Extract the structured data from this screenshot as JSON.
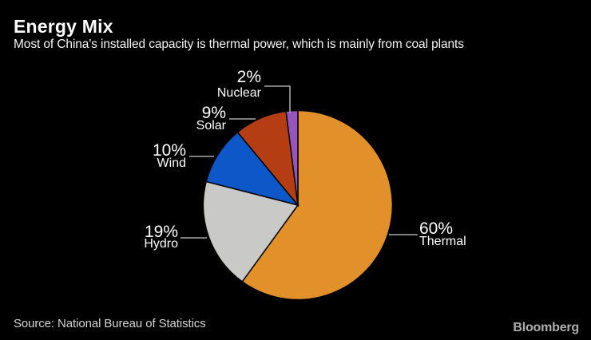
{
  "header": {
    "title": "Energy Mix",
    "subtitle": "Most of China's installed capacity is thermal power, which is mainly from coal plants"
  },
  "chart_data": {
    "type": "pie",
    "title": "Energy Mix",
    "subtitle": "Most of China's installed capacity is thermal power, which is mainly from coal plants",
    "unit": "%",
    "start_angle_deg": 0,
    "direction": "clockwise",
    "legend": "none",
    "label_style": "outside-with-leader-lines",
    "slices": [
      {
        "label": "Thermal",
        "value": 60,
        "display": "60%",
        "color": "#E2902A"
      },
      {
        "label": "Hydro",
        "value": 19,
        "display": "19%",
        "color": "#C9C9C7"
      },
      {
        "label": "Wind",
        "value": 10,
        "display": "10%",
        "color": "#0D57C8"
      },
      {
        "label": "Solar",
        "value": 9,
        "display": "9%",
        "color": "#B43D13"
      },
      {
        "label": "Nuclear",
        "value": 2,
        "display": "2%",
        "color": "#9655BD"
      }
    ]
  },
  "footer": {
    "source": "Source: National Bureau of Statistics",
    "brand": "Bloomberg"
  },
  "colors": {
    "background": "#000000",
    "text": "#FFFFFF",
    "leader_line": "#C9C9C9",
    "slice_border": "#000000"
  }
}
